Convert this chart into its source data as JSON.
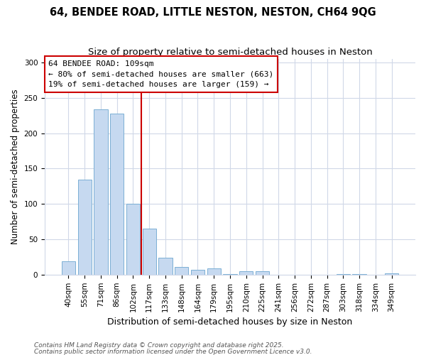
{
  "title1": "64, BENDEE ROAD, LITTLE NESTON, NESTON, CH64 9QG",
  "title2": "Size of property relative to semi-detached houses in Neston",
  "xlabel": "Distribution of semi-detached houses by size in Neston",
  "ylabel": "Number of semi-detached properties",
  "categories": [
    "40sqm",
    "55sqm",
    "71sqm",
    "86sqm",
    "102sqm",
    "117sqm",
    "133sqm",
    "148sqm",
    "164sqm",
    "179sqm",
    "195sqm",
    "210sqm",
    "225sqm",
    "241sqm",
    "256sqm",
    "272sqm",
    "287sqm",
    "303sqm",
    "318sqm",
    "334sqm",
    "349sqm"
  ],
  "values": [
    19,
    134,
    234,
    228,
    100,
    65,
    24,
    11,
    7,
    9,
    1,
    5,
    5,
    0,
    0,
    0,
    0,
    1,
    1,
    0,
    2
  ],
  "bar_color": "#c6d9f0",
  "bar_edge_color": "#7bafd4",
  "vline_x": 4.5,
  "vline_color": "#cc0000",
  "annotation_title": "64 BENDEE ROAD: 109sqm",
  "annotation_line2": "← 80% of semi-detached houses are smaller (663)",
  "annotation_line3": "19% of semi-detached houses are larger (159) →",
  "annotation_box_color": "white",
  "annotation_box_edge": "#cc0000",
  "ylim": [
    0,
    305
  ],
  "yticks": [
    0,
    50,
    100,
    150,
    200,
    250,
    300
  ],
  "footnote1": "Contains HM Land Registry data © Crown copyright and database right 2025.",
  "footnote2": "Contains public sector information licensed under the Open Government Licence v3.0.",
  "bg_color": "#ffffff",
  "grid_color": "#d0d8e8",
  "title1_fontsize": 10.5,
  "title2_fontsize": 9.5,
  "xlabel_fontsize": 9,
  "ylabel_fontsize": 8.5,
  "tick_fontsize": 7.5,
  "annot_fontsize": 8,
  "footnote_fontsize": 6.5
}
